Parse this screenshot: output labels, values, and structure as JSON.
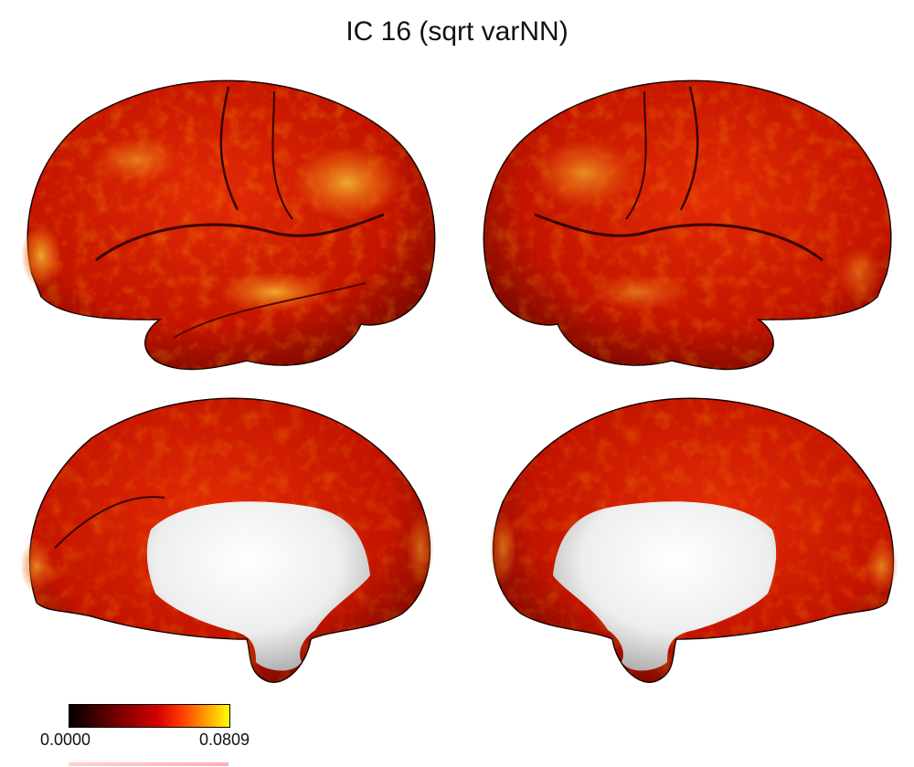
{
  "title": "IC 16 (sqrt varNN)",
  "colorbar": {
    "min_label": "0.0000",
    "max_label": "0.0809",
    "colormap": [
      "#000000",
      "#8a0000",
      "#d40000",
      "#ff3a00",
      "#ff9a00",
      "#ffff00"
    ]
  },
  "views": [
    {
      "hemisphere": "left",
      "view": "lateral"
    },
    {
      "hemisphere": "right",
      "view": "lateral"
    },
    {
      "hemisphere": "left",
      "view": "medial"
    },
    {
      "hemisphere": "right",
      "view": "medial"
    }
  ],
  "colors": {
    "cortex_base": "#cc1a00",
    "cortex_dark": "#8f0c00",
    "hotspot": "#f0a020",
    "medial_wall": "#f2f2f2"
  }
}
